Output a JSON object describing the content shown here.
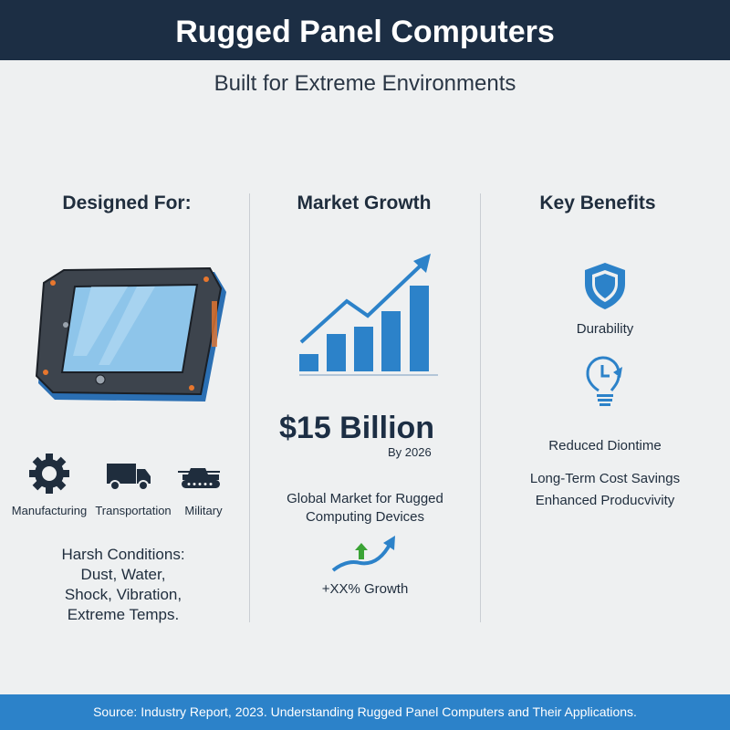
{
  "header": {
    "title": "Rugged Panel Computers"
  },
  "subtitle": "Built for Extreme Environments",
  "columns": {
    "designed_for": {
      "heading": "Designed For:",
      "industries": [
        {
          "label": "Manufacturing",
          "icon": "gear-icon"
        },
        {
          "label": "Transportation",
          "icon": "truck-icon"
        },
        {
          "label": "Military",
          "icon": "tank-icon"
        }
      ],
      "conditions": [
        "Harsh Conditions:",
        "Dust, Water,",
        "Shock, Vibration,",
        "Extreme Temps."
      ]
    },
    "market_growth": {
      "heading": "Market Growth",
      "value": "$15 Billion",
      "by": "By 2026",
      "description": [
        "Global Market for Rugged",
        "Computing Devices"
      ],
      "growth": "+XX% Growth"
    },
    "key_benefits": {
      "heading": "Key Benefits",
      "items": [
        "Durability",
        "Reduced Diontime",
        "Long-Term Cost Savings",
        "Enhanced Producvivity"
      ]
    }
  },
  "colors": {
    "header": "#1c2e44",
    "accent": "#2c82c9",
    "text": "#1f2d3d",
    "green": "#3aa335"
  },
  "footer": "Source: Industry Report, 2023. Understanding Rugged Panel Computers and Their Applications."
}
